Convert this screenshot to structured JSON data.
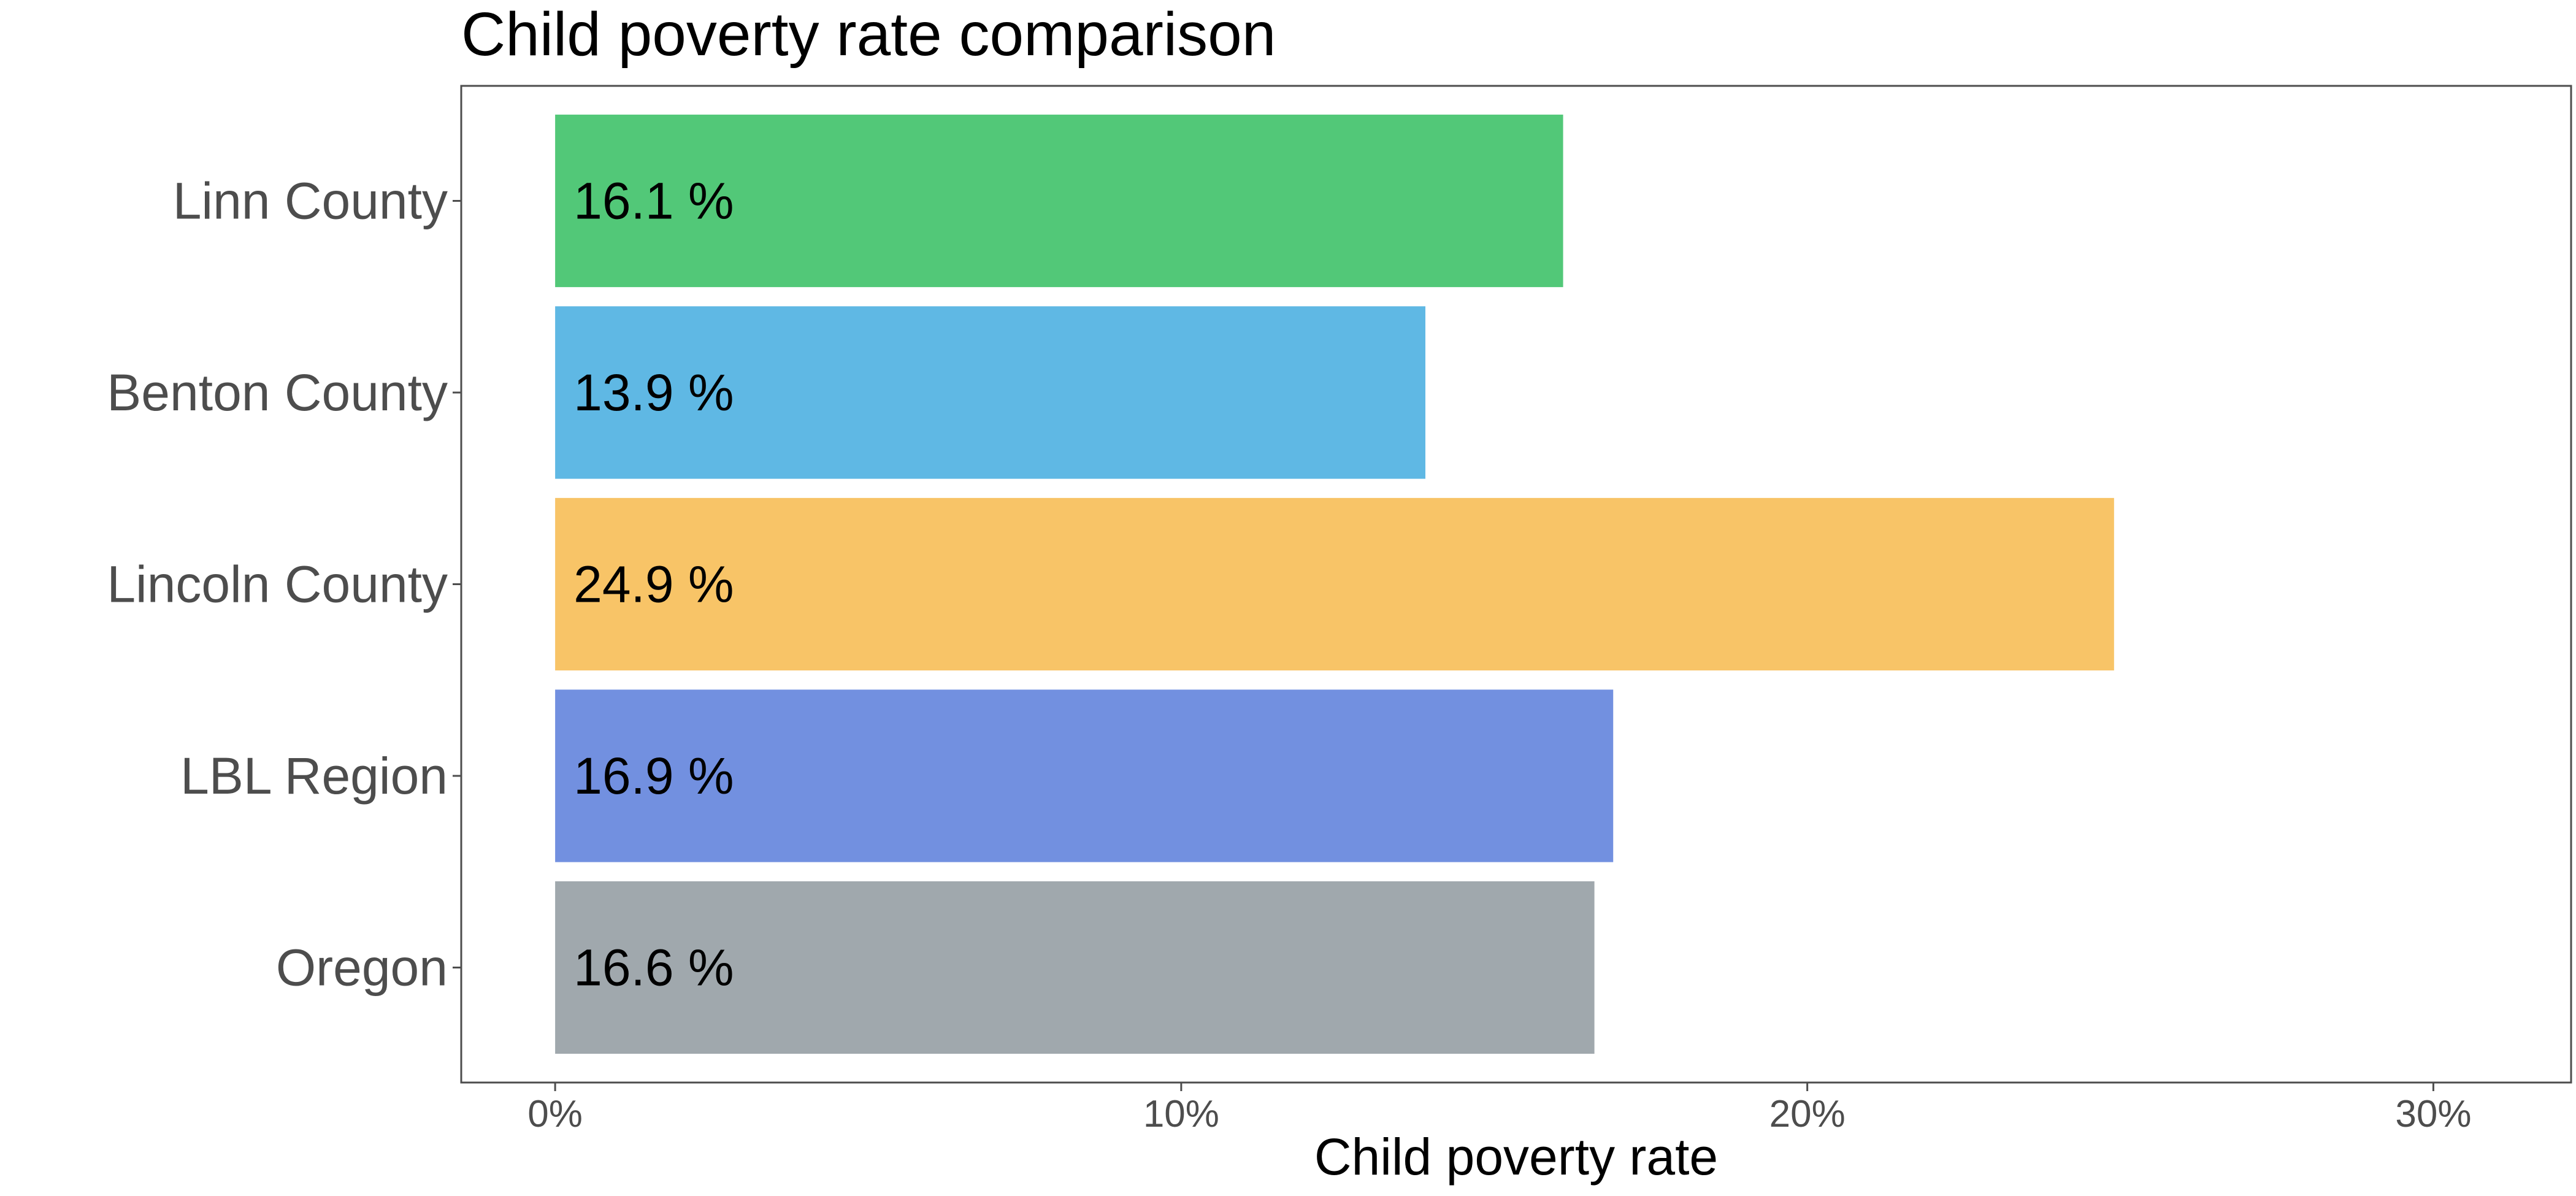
{
  "chart_data": {
    "type": "bar",
    "orientation": "horizontal",
    "title": "Child poverty rate comparison",
    "xlabel": "Child poverty rate",
    "ylabel": "",
    "categories": [
      "Linn County",
      "Benton County",
      "Lincoln County",
      "LBL Region",
      "Oregon"
    ],
    "values": [
      16.1,
      13.9,
      24.9,
      16.9,
      16.6
    ],
    "data_labels": [
      "16.1 %",
      "13.9 %",
      "24.9 %",
      "16.9 %",
      "16.6 %"
    ],
    "colors": [
      "#52c878",
      "#5fb8e4",
      "#f8c467",
      "#7290e0",
      "#a0a8ad"
    ],
    "xlim": [
      -1.5,
      32.2
    ],
    "xticks": [
      0,
      10,
      20,
      30
    ],
    "xtick_labels": [
      "0%",
      "10%",
      "20%",
      "30%"
    ],
    "grid": false,
    "legend": "none"
  }
}
